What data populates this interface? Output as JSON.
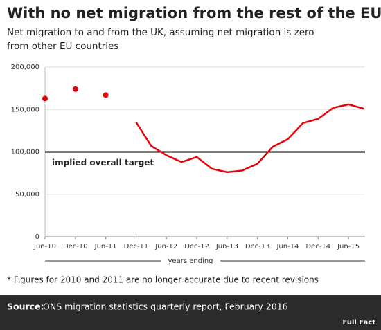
{
  "chart_data": {
    "type": "line",
    "title": "With no net migration from the rest of the EU",
    "subtitle": [
      "Net migration to and from the UK, assuming net migration is zero",
      "from other EU countries"
    ],
    "categories": [
      "Jun-10",
      null,
      "Dec-10",
      null,
      "Jun-11",
      null,
      "Dec-11",
      null,
      "Jun-12",
      null,
      "Dec-12",
      null,
      "Jun-13",
      null,
      "Dec-13",
      null,
      "Jun-14",
      null,
      "Dec-14",
      null,
      "Jun-15",
      null
    ],
    "series": [
      {
        "type": "scatter",
        "color": "#e8000b",
        "values": [
          163000,
          null,
          174000,
          null,
          167000,
          null,
          null,
          null,
          null,
          null,
          null,
          null,
          null,
          null,
          null,
          null,
          null,
          null,
          null,
          null,
          null,
          null
        ]
      },
      {
        "type": "line",
        "color": "#e8000b",
        "values": [
          null,
          null,
          null,
          null,
          null,
          null,
          135000,
          107000,
          96000,
          88000,
          94000,
          80000,
          76000,
          78000,
          86000,
          106000,
          115000,
          134000,
          139000,
          152000,
          156000,
          151000
        ]
      }
    ],
    "ylim": [
      0,
      200000
    ],
    "yticks": [
      0,
      {
        "value": 50000,
        "label": "50,000"
      },
      {
        "value": 100000,
        "label": "100,000"
      },
      {
        "value": 150000,
        "label": "150,000"
      },
      {
        "value": 200000,
        "label": "200,000"
      }
    ],
    "grid": true,
    "target": {
      "value": 100000,
      "label": "implied overall target"
    },
    "xlabel": "years ending",
    "footnote": "* Figures for 2010 and 2011 are no longer accurate due to recent revisions",
    "source_label": "Source:",
    "source": "ONS migration statistics quarterly report, February 2016",
    "logo": "Full Fact"
  }
}
